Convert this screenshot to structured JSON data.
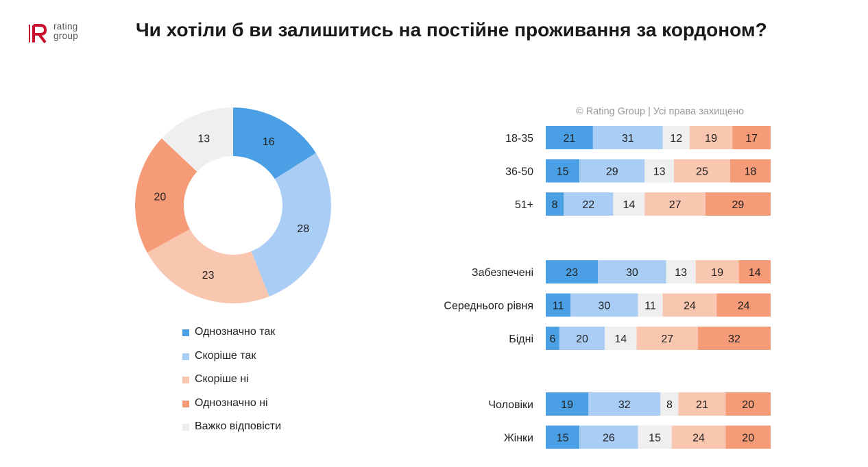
{
  "logo": {
    "line1": "rating",
    "line2": "group",
    "mark_letter": "R"
  },
  "title": "Чи хотіли б ви залишитись на постійне проживання за кордоном?",
  "copyright": "© Rating Group | Усі права захищено",
  "chart_data": [
    {
      "type": "pie",
      "donut": true,
      "categories": [
        "Однозначно так",
        "Скоріше так",
        "Скоріше ні",
        "Однозначно ні",
        "Важко відповісти"
      ],
      "values": [
        16,
        28,
        23,
        20,
        13
      ],
      "colors": [
        "#4a9fe5",
        "#a9cdf5",
        "#f9c6b0",
        "#f59b78",
        "#efefef"
      ],
      "legend_position": "bottom"
    },
    {
      "type": "bar",
      "orientation": "horizontal",
      "stacked": true,
      "normalized": true,
      "series_names": [
        "Однозначно так",
        "Скоріше так",
        "Важко відповісти",
        "Скоріше ні",
        "Однозначно ні"
      ],
      "colors": [
        "#4a9fe5",
        "#a9cdf5",
        "#efefef",
        "#f9c6b0",
        "#f59b78"
      ],
      "groups": [
        {
          "rows": [
            {
              "label": "18-35",
              "values": [
                21,
                31,
                12,
                19,
                17
              ]
            },
            {
              "label": "36-50",
              "values": [
                15,
                29,
                13,
                25,
                18
              ]
            },
            {
              "label": "51+",
              "values": [
                8,
                22,
                14,
                27,
                29
              ]
            }
          ]
        },
        {
          "rows": [
            {
              "label": "Забезпечені",
              "values": [
                23,
                30,
                13,
                19,
                14
              ]
            },
            {
              "label": "Середнього рівня",
              "values": [
                11,
                30,
                11,
                24,
                24
              ]
            },
            {
              "label": "Бідні",
              "values": [
                6,
                20,
                14,
                27,
                32
              ]
            }
          ]
        },
        {
          "rows": [
            {
              "label": "Чоловіки",
              "values": [
                19,
                32,
                8,
                21,
                20
              ]
            },
            {
              "label": "Жінки",
              "values": [
                15,
                26,
                15,
                24,
                20
              ]
            }
          ]
        }
      ]
    }
  ]
}
